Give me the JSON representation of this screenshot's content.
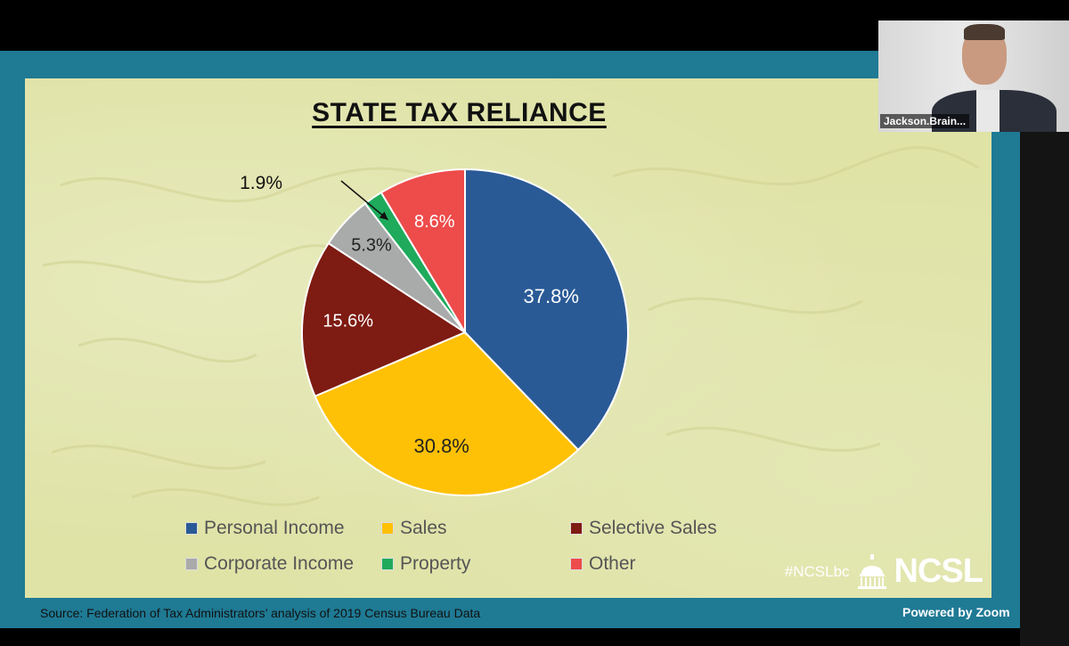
{
  "slide": {
    "title": "STATE TAX RELIANCE",
    "source": "Source: Federation of Tax Administrators’ analysis of 2019 Census Bureau Data",
    "hashtag": "#NCSLbc",
    "logo_text": "NCSL"
  },
  "zoom": {
    "participant_name": "Jackson.Brain...",
    "powered_by": "Powered by Zoom"
  },
  "chart_data": {
    "type": "pie",
    "title": "STATE TAX RELIANCE",
    "unit": "%",
    "slices": [
      {
        "name": "Personal Income",
        "value": 37.8,
        "label": "37.8%",
        "color": "#2a5a96"
      },
      {
        "name": "Sales",
        "value": 30.8,
        "label": "30.8%",
        "color": "#ffc105"
      },
      {
        "name": "Selective Sales",
        "value": 15.6,
        "label": "15.6%",
        "color": "#7e1b12"
      },
      {
        "name": "Corporate Income",
        "value": 5.3,
        "label": "5.3%",
        "color": "#a9aaaa"
      },
      {
        "name": "Property",
        "value": 1.9,
        "label": "1.9%",
        "color": "#1faa5c"
      },
      {
        "name": "Other",
        "value": 8.6,
        "label": "8.6%",
        "color": "#ee4b4b"
      }
    ],
    "start_angle_deg": 0,
    "direction": "clockwise",
    "legend_position": "bottom"
  }
}
